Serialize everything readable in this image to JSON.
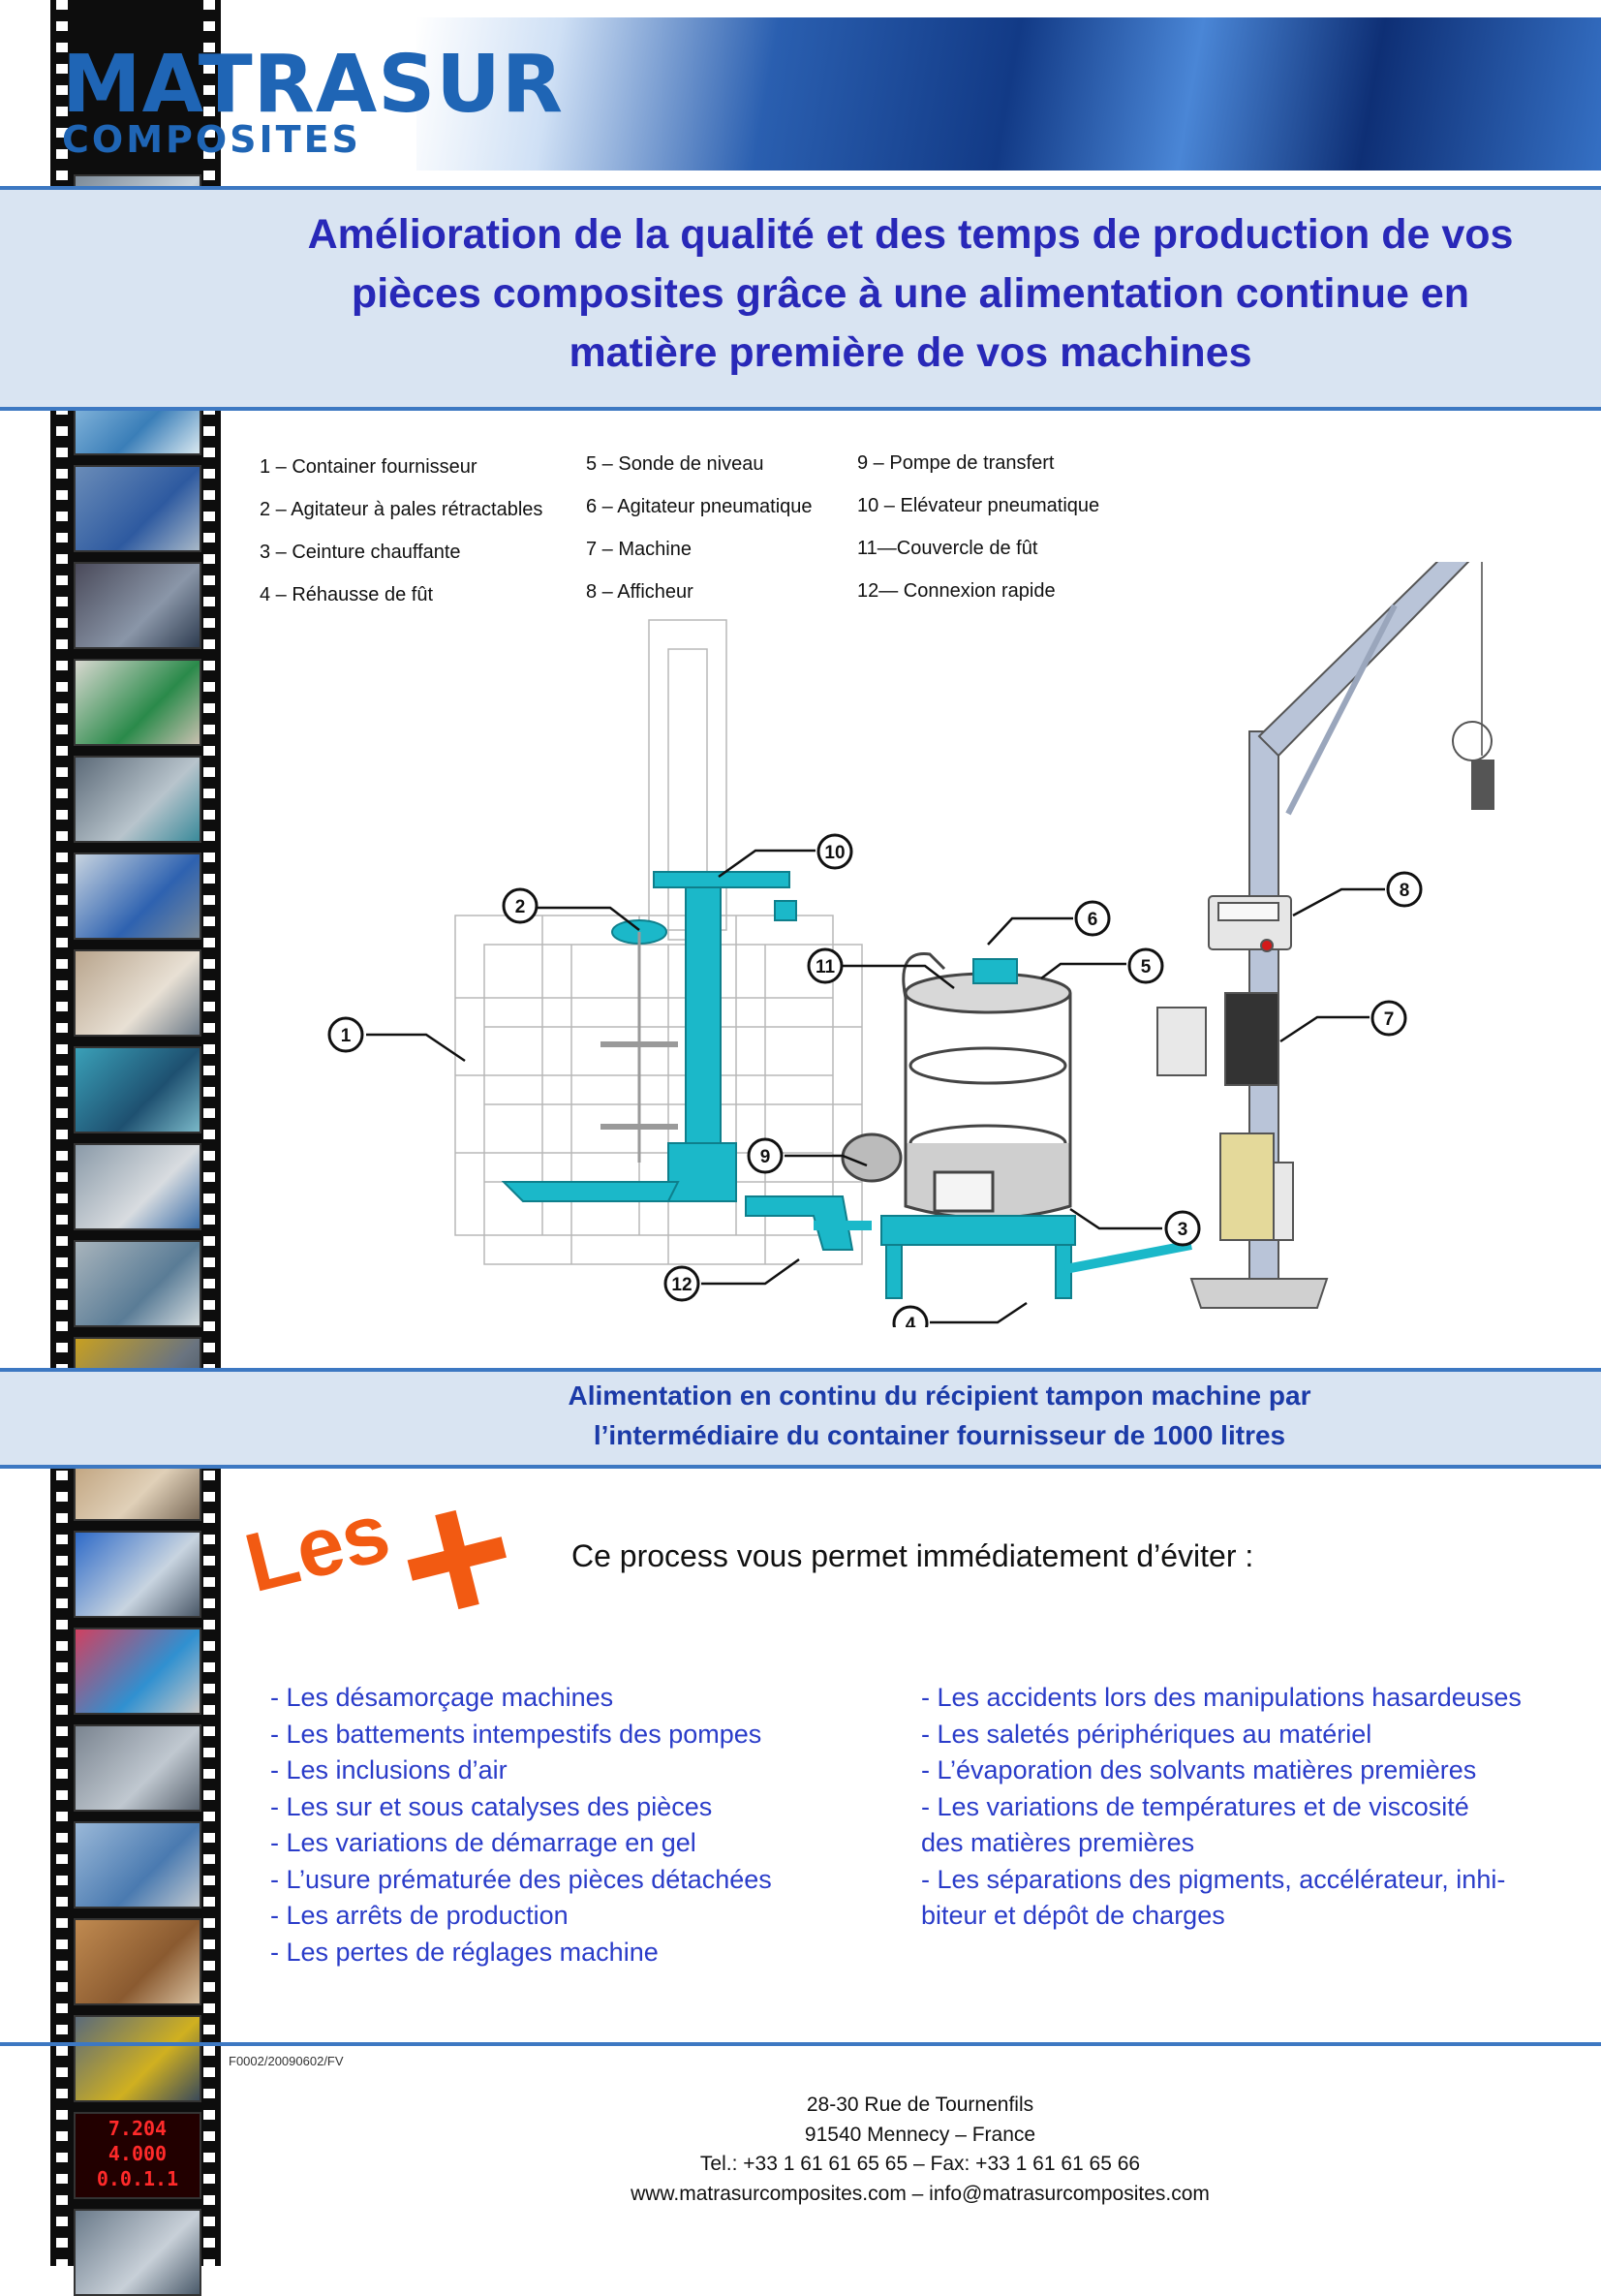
{
  "colors": {
    "brand_blue": "#1f65b5",
    "title_blue": "#2828b8",
    "accent_orange": "#f25a12",
    "band": "#d9e4f2",
    "cyan_part": "#1bb8c9"
  },
  "logo": {
    "line1": "MATRASUR",
    "line2": "COMPOSITES"
  },
  "title": {
    "line1": "Amélioration de la qualité et des temps de production de vos",
    "line2": "pièces composites grâce à une alimentation continue en",
    "line3": "matière première de vos machines"
  },
  "legend": [
    [
      "1 – Container fournisseur",
      "2 – Agitateur à pales rétractables",
      "3 – Ceinture chauffante",
      "4 – Réhausse de fût"
    ],
    [
      "5 – Sonde de niveau",
      "6 – Agitateur pneumatique",
      "7 – Machine",
      "8 – Afficheur"
    ],
    [
      "9 – Pompe de transfert",
      "10 – Elévateur pneumatique",
      "11—Couvercle de fût",
      "12— Connexion rapide"
    ]
  ],
  "callouts": [
    "1",
    "2",
    "3",
    "4",
    "5",
    "6",
    "7",
    "8",
    "9",
    "10",
    "11",
    "12"
  ],
  "caption": {
    "line1": "Alimentation en continu du récipient tampon machine par",
    "line2": "l’intermédiaire du container fournisseur de 1000 litres"
  },
  "les": {
    "text": "Les",
    "plus": "+"
  },
  "process": "Ce process vous permet immédiatement d’éviter :",
  "list_left": [
    "- Les désamorçage machines",
    "- Les battements intempestifs des pompes",
    "- Les inclusions d’air",
    "- Les sur et sous catalyses des pièces",
    "- Les variations de démarrage en gel",
    "- L’usure prématurée des pièces détachées",
    "- Les arrêts de production",
    "- Les pertes de réglages machine"
  ],
  "list_right": [
    "- Les accidents lors des manipulations hasardeuses",
    "- Les saletés périphériques au matériel",
    "- L’évaporation des solvants matières premières",
    "- Les variations de températures et de viscosité",
    "des matières premières",
    "- Les séparations des pigments,  accélérateur, inhi-",
    "biteur et dépôt de charges"
  ],
  "film_display": {
    "l1": "7.204",
    "l2": "4.000",
    "l3": "0.0.1.1"
  },
  "ref": "F0002/20090602/FV",
  "address": {
    "line1": "28-30 Rue de Tournenfils",
    "line2": "91540 Mennecy – France",
    "line3": "Tel.: +33 1 61 61 65 65 – Fax: +33 1 61 61 65 66",
    "line4": "www.matrasurcomposites.com – info@matrasurcomposites.com"
  }
}
